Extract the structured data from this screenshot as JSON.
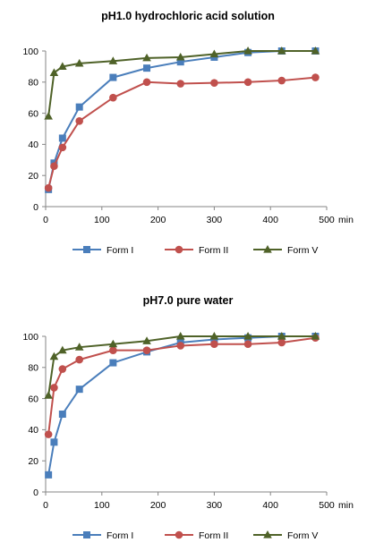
{
  "chart_data": [
    {
      "type": "line",
      "title": "pH1.0  hydrochloric acid solution",
      "xlabel": "min",
      "ylabel": "",
      "xlim": [
        0,
        500
      ],
      "ylim": [
        0,
        100
      ],
      "xticks": [
        0,
        100,
        200,
        300,
        400,
        500
      ],
      "yticks": [
        0,
        20,
        40,
        60,
        80,
        100
      ],
      "grid": false,
      "legend": "bottom",
      "series": [
        {
          "name": "Form I",
          "color": "#4a7ebb",
          "marker": "square",
          "x": [
            5,
            15,
            30,
            60,
            120,
            180,
            240,
            300,
            360,
            420,
            480
          ],
          "y": [
            11,
            28,
            44,
            64,
            83,
            89,
            93,
            96,
            99,
            100,
            100
          ]
        },
        {
          "name": "Form II",
          "color": "#c0504d",
          "marker": "circle",
          "x": [
            5,
            15,
            30,
            60,
            120,
            180,
            240,
            300,
            360,
            420,
            480
          ],
          "y": [
            12,
            26,
            38,
            55,
            70,
            80,
            79,
            79.5,
            80,
            81,
            83
          ]
        },
        {
          "name": "Form V",
          "color": "#4f6228",
          "marker": "triangle",
          "x": [
            5,
            15,
            30,
            60,
            120,
            180,
            240,
            300,
            360,
            420,
            480
          ],
          "y": [
            58,
            86,
            90,
            92,
            93.5,
            95.5,
            96,
            98,
            100,
            100,
            100
          ]
        }
      ]
    },
    {
      "type": "line",
      "title": "pH7.0  pure water",
      "xlabel": "min",
      "ylabel": "",
      "xlim": [
        0,
        500
      ],
      "ylim": [
        0,
        100
      ],
      "xticks": [
        0,
        100,
        200,
        300,
        400,
        500
      ],
      "yticks": [
        0,
        20,
        40,
        60,
        80,
        100
      ],
      "grid": false,
      "legend": "bottom",
      "series": [
        {
          "name": "Form I",
          "color": "#4a7ebb",
          "marker": "square",
          "x": [
            5,
            15,
            30,
            60,
            120,
            180,
            240,
            300,
            360,
            420,
            480
          ],
          "y": [
            11,
            32,
            50,
            66,
            83,
            90,
            96,
            98,
            99,
            100,
            100
          ]
        },
        {
          "name": "Form II",
          "color": "#c0504d",
          "marker": "circle",
          "x": [
            5,
            15,
            30,
            60,
            120,
            180,
            240,
            300,
            360,
            420,
            480
          ],
          "y": [
            37,
            67,
            79,
            85,
            91,
            91,
            94,
            95,
            95,
            96,
            99
          ]
        },
        {
          "name": "Form V",
          "color": "#4f6228",
          "marker": "triangle",
          "x": [
            5,
            15,
            30,
            60,
            120,
            180,
            240,
            300,
            360,
            420,
            480
          ],
          "y": [
            62,
            87,
            91,
            93,
            95,
            97,
            100,
            100,
            100,
            100,
            100
          ]
        }
      ]
    }
  ]
}
